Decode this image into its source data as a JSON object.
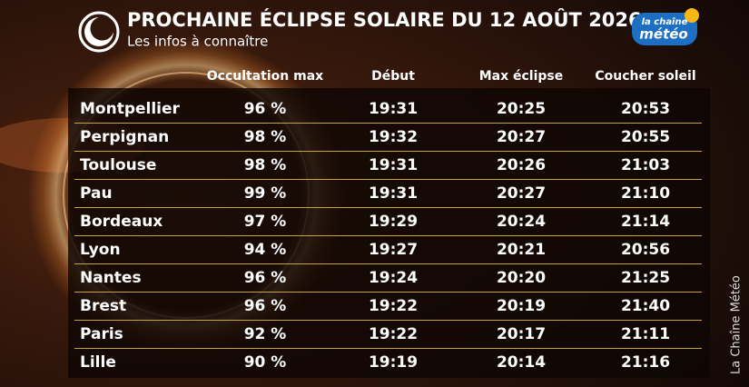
{
  "header": {
    "title": "PROCHAINE ÉCLIPSE SOLAIRE DU 12 AOÛT 2026",
    "subtitle": "Les infos à connaître"
  },
  "logo": {
    "line1": "la chaîne",
    "line2": "météo"
  },
  "credit": "La Chaîne Météo",
  "table": {
    "columns": [
      "Occultation max",
      "Début",
      "Max éclipse",
      "Coucher soleil"
    ],
    "rows": [
      [
        "Montpellier",
        "96 %",
        "19:31",
        "20:25",
        "20:53"
      ],
      [
        "Perpignan",
        "98 %",
        "19:32",
        "20:27",
        "20:55"
      ],
      [
        "Toulouse",
        "98 %",
        "19:31",
        "20:26",
        "21:03"
      ],
      [
        "Pau",
        "99 %",
        "19:31",
        "20:27",
        "21:10"
      ],
      [
        "Bordeaux",
        "97 %",
        "19:29",
        "20:24",
        "21:14"
      ],
      [
        "Lyon",
        "94 %",
        "19:27",
        "20:21",
        "20:56"
      ],
      [
        "Nantes",
        "96 %",
        "19:24",
        "20:20",
        "21:25"
      ],
      [
        "Brest",
        "96 %",
        "19:22",
        "20:19",
        "21:40"
      ],
      [
        "Paris",
        "92 %",
        "19:22",
        "20:17",
        "21:11"
      ],
      [
        "Lille",
        "90 %",
        "19:19",
        "20:14",
        "21:16"
      ]
    ]
  }
}
